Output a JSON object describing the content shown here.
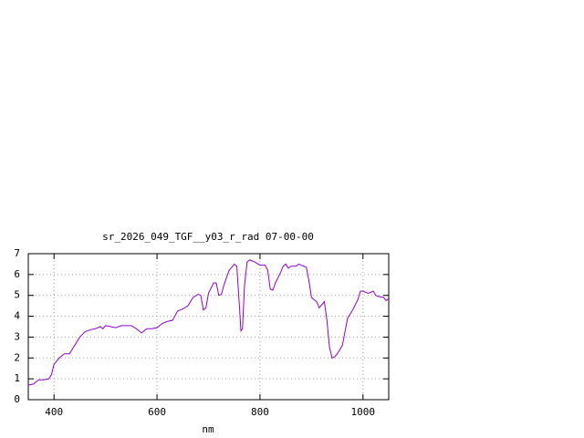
{
  "chart_data": {
    "type": "line",
    "title": "sr_2026_049_TGF__y03_r_rad 07-00-00",
    "x_label": "nm",
    "xlim": [
      350,
      1050
    ],
    "ylim": [
      0,
      7
    ],
    "xticks": [
      400,
      600,
      800,
      1000
    ],
    "yticks": [
      0,
      1,
      2,
      3,
      4,
      5,
      6,
      7
    ],
    "grid": true,
    "series": [
      {
        "color": "#9400d3",
        "x": [
          350,
          360,
          370,
          380,
          390,
          395,
          400,
          410,
          420,
          430,
          440,
          450,
          460,
          470,
          480,
          490,
          495,
          500,
          510,
          520,
          530,
          540,
          550,
          560,
          570,
          580,
          590,
          600,
          610,
          620,
          630,
          640,
          650,
          660,
          670,
          680,
          685,
          690,
          695,
          700,
          710,
          715,
          720,
          725,
          730,
          740,
          750,
          755,
          760,
          763,
          766,
          770,
          775,
          780,
          790,
          800,
          810,
          815,
          820,
          825,
          830,
          840,
          845,
          850,
          855,
          860,
          870,
          875,
          880,
          890,
          895,
          900,
          910,
          915,
          920,
          925,
          930,
          935,
          940,
          945,
          950,
          960,
          970,
          980,
          990,
          995,
          1000,
          1010,
          1020,
          1025,
          1030,
          1040,
          1045,
          1050
        ],
        "values": [
          0.7,
          0.75,
          0.95,
          0.95,
          1.0,
          1.2,
          1.7,
          2.0,
          2.2,
          2.2,
          2.6,
          3.0,
          3.25,
          3.35,
          3.4,
          3.5,
          3.4,
          3.55,
          3.5,
          3.45,
          3.55,
          3.55,
          3.55,
          3.4,
          3.2,
          3.4,
          3.4,
          3.45,
          3.65,
          3.75,
          3.8,
          4.25,
          4.35,
          4.5,
          4.9,
          5.05,
          5.0,
          4.3,
          4.4,
          5.1,
          5.6,
          5.6,
          5.0,
          5.05,
          5.5,
          6.2,
          6.5,
          6.4,
          4.5,
          3.3,
          3.4,
          5.5,
          6.6,
          6.7,
          6.6,
          6.45,
          6.45,
          6.2,
          5.3,
          5.25,
          5.6,
          6.1,
          6.4,
          6.5,
          6.3,
          6.4,
          6.4,
          6.5,
          6.45,
          6.35,
          5.7,
          4.9,
          4.7,
          4.4,
          4.55,
          4.7,
          3.8,
          2.5,
          2.0,
          2.05,
          2.2,
          2.6,
          3.9,
          4.3,
          4.8,
          5.2,
          5.2,
          5.1,
          5.2,
          5.0,
          4.95,
          4.9,
          4.75,
          4.85
        ]
      }
    ]
  }
}
